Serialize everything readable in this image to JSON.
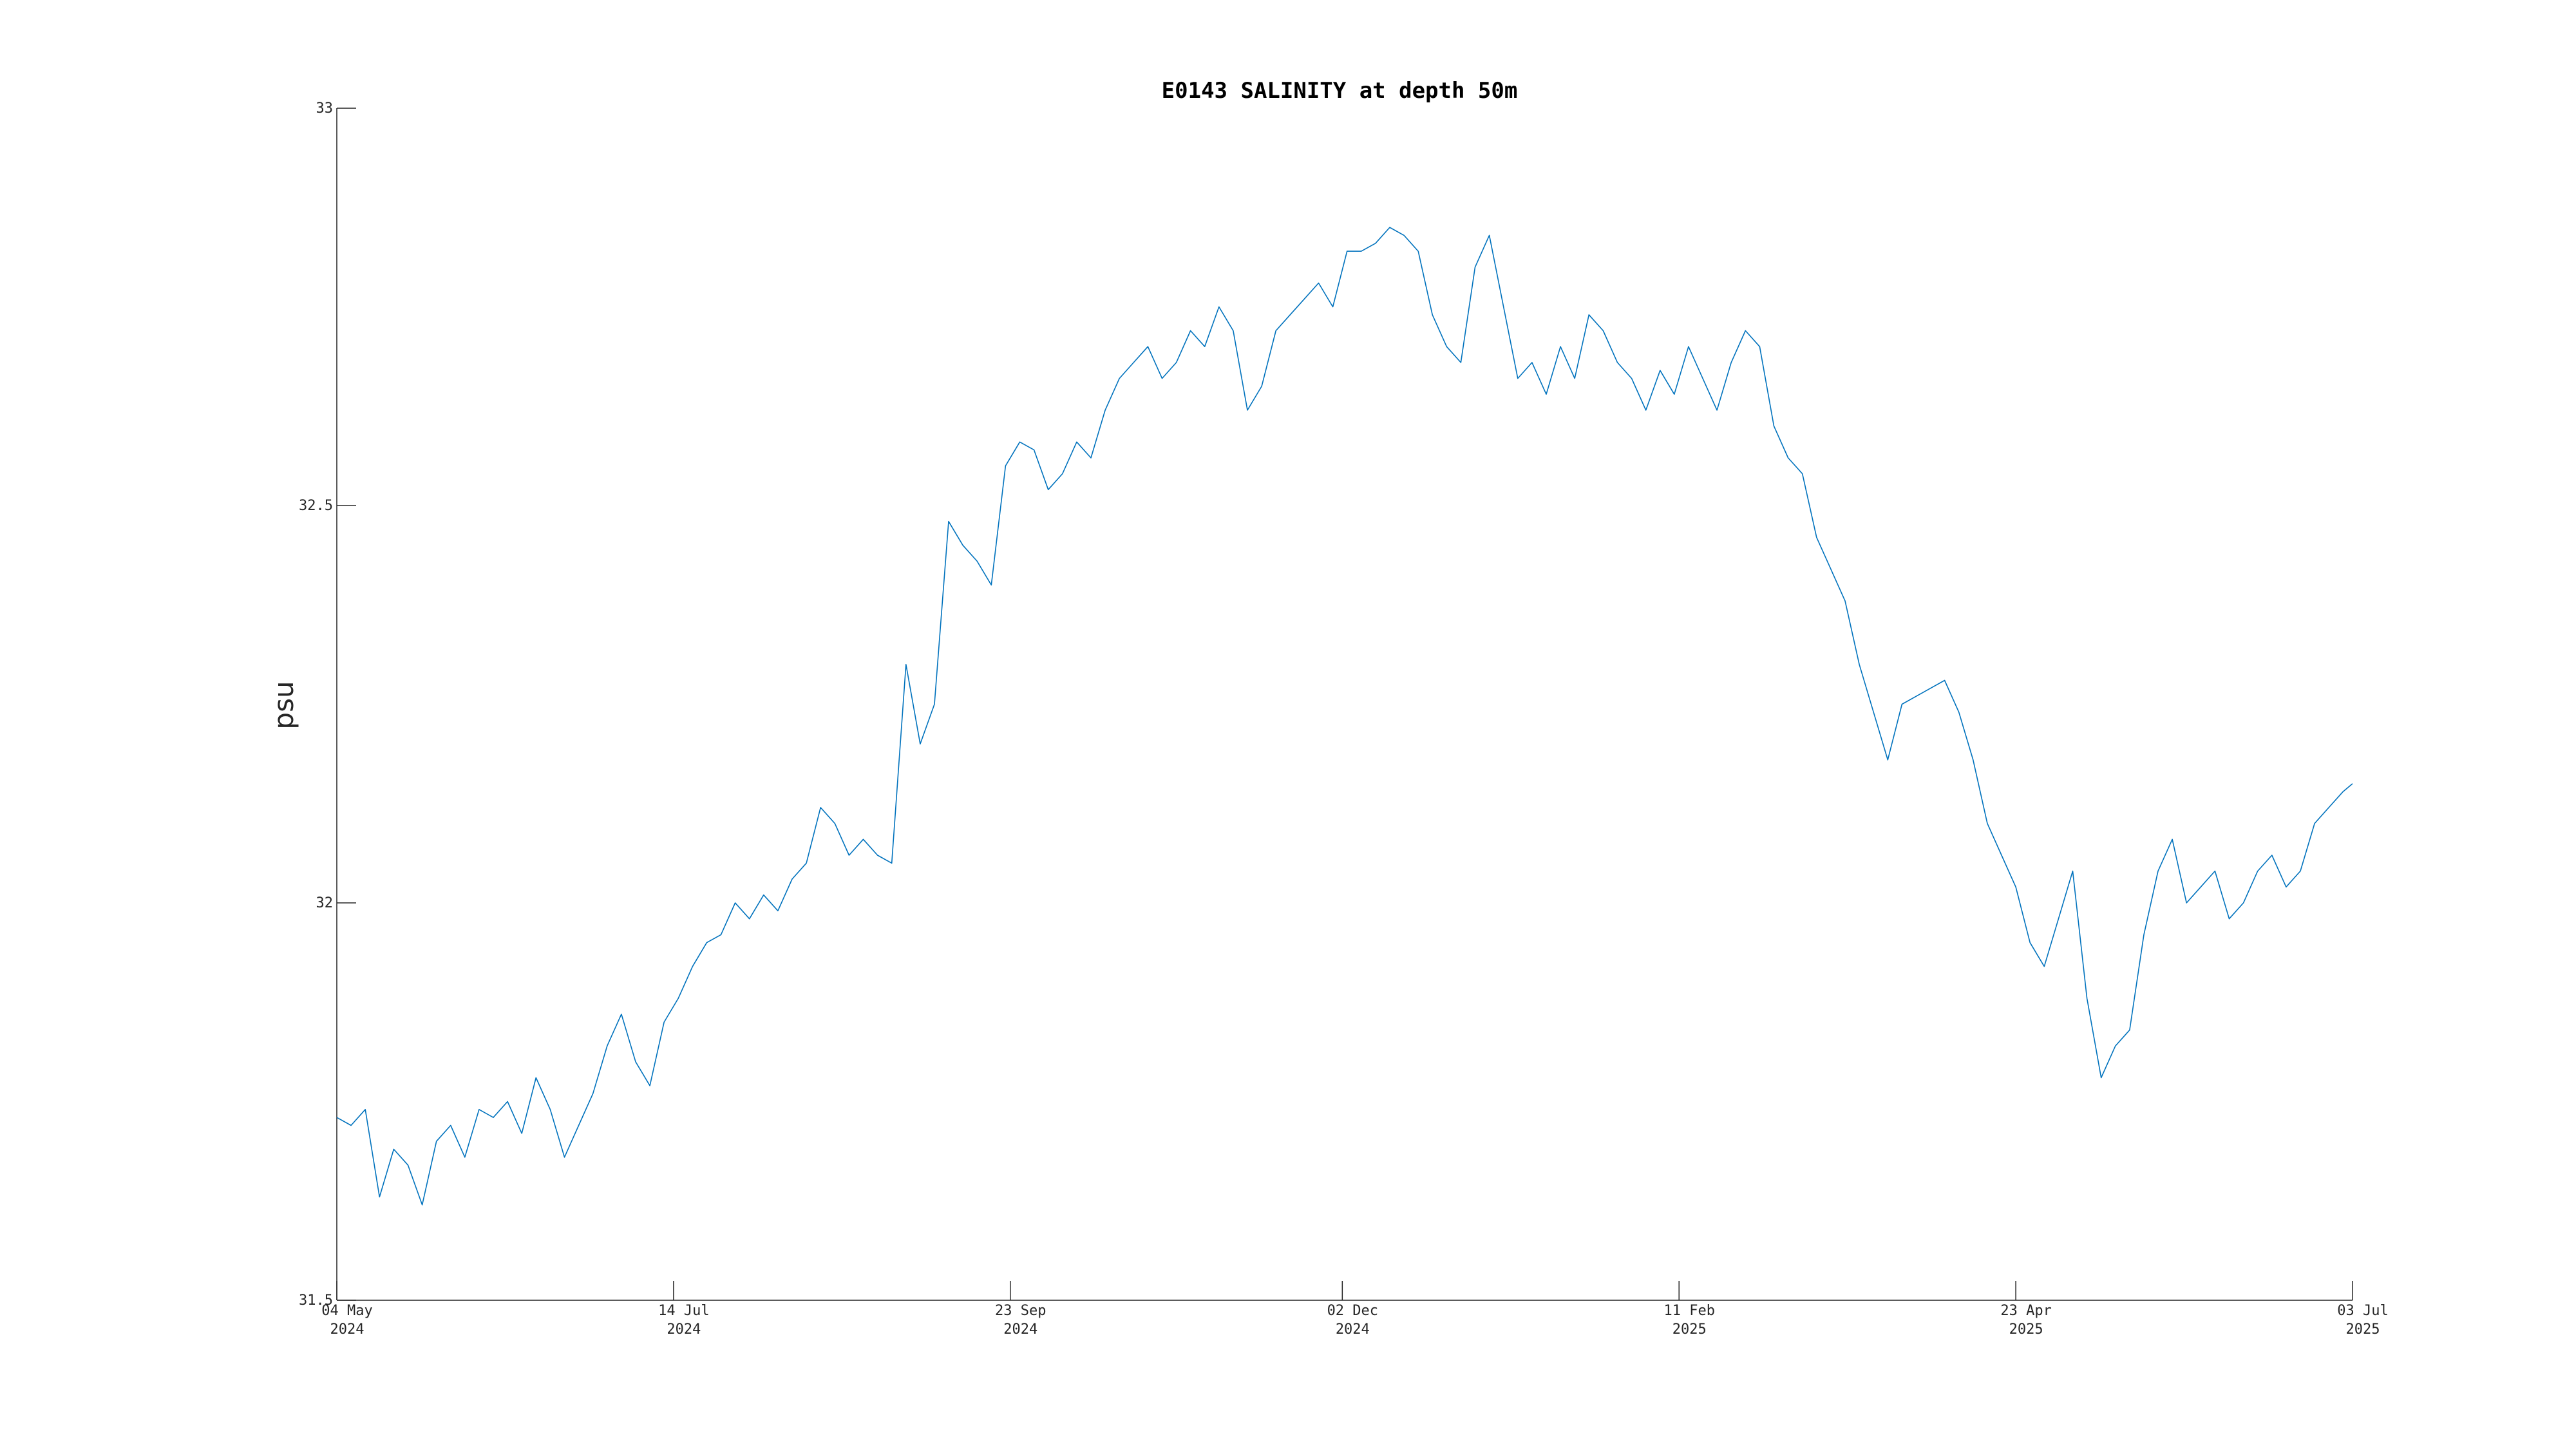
{
  "chart_data": {
    "type": "line",
    "title": "E0143 SALINITY at depth 50m",
    "xlabel": "",
    "ylabel": "psu",
    "xlim": [
      "2024-05-04",
      "2025-07-03"
    ],
    "ylim": [
      31.5,
      33
    ],
    "grid": false,
    "legend": "none",
    "x_ticks": [
      {
        "date": "2024-05-04",
        "line1": "04 May",
        "line2": "2024"
      },
      {
        "date": "2024-07-14",
        "line1": "14 Jul",
        "line2": "2024"
      },
      {
        "date": "2024-09-23",
        "line1": "23 Sep",
        "line2": "2024"
      },
      {
        "date": "2024-12-02",
        "line1": "02 Dec",
        "line2": "2024"
      },
      {
        "date": "2025-02-11",
        "line1": "11 Feb",
        "line2": "2025"
      },
      {
        "date": "2025-04-23",
        "line1": "23 Apr",
        "line2": "2025"
      },
      {
        "date": "2025-07-03",
        "line1": "03 Jul",
        "line2": "2025"
      }
    ],
    "y_ticks": [
      {
        "value": 31.5,
        "label": "31.5"
      },
      {
        "value": 32,
        "label": "32"
      },
      {
        "value": 32.5,
        "label": "32.5"
      },
      {
        "value": 33,
        "label": "33"
      }
    ],
    "series": [
      {
        "color": "#0072BD",
        "x": [
          "2024-05-04",
          "2024-05-07",
          "2024-05-10",
          "2024-05-13",
          "2024-05-16",
          "2024-05-19",
          "2024-05-22",
          "2024-05-25",
          "2024-05-28",
          "2024-05-31",
          "2024-06-03",
          "2024-06-06",
          "2024-06-09",
          "2024-06-12",
          "2024-06-15",
          "2024-06-18",
          "2024-06-21",
          "2024-06-24",
          "2024-06-27",
          "2024-06-30",
          "2024-07-03",
          "2024-07-06",
          "2024-07-09",
          "2024-07-12",
          "2024-07-15",
          "2024-07-18",
          "2024-07-21",
          "2024-07-24",
          "2024-07-27",
          "2024-07-30",
          "2024-08-02",
          "2024-08-05",
          "2024-08-08",
          "2024-08-11",
          "2024-08-14",
          "2024-08-17",
          "2024-08-20",
          "2024-08-23",
          "2024-08-26",
          "2024-08-29",
          "2024-09-01",
          "2024-09-04",
          "2024-09-07",
          "2024-09-10",
          "2024-09-13",
          "2024-09-16",
          "2024-09-19",
          "2024-09-22",
          "2024-09-25",
          "2024-09-28",
          "2024-10-01",
          "2024-10-04",
          "2024-10-07",
          "2024-10-10",
          "2024-10-13",
          "2024-10-16",
          "2024-10-19",
          "2024-10-22",
          "2024-10-25",
          "2024-10-28",
          "2024-10-31",
          "2024-11-03",
          "2024-11-06",
          "2024-11-09",
          "2024-11-12",
          "2024-11-15",
          "2024-11-18",
          "2024-11-21",
          "2024-11-24",
          "2024-11-27",
          "2024-11-30",
          "2024-12-03",
          "2024-12-06",
          "2024-12-09",
          "2024-12-12",
          "2024-12-15",
          "2024-12-18",
          "2024-12-21",
          "2024-12-24",
          "2024-12-27",
          "2024-12-30",
          "2025-01-02",
          "2025-01-05",
          "2025-01-08",
          "2025-01-11",
          "2025-01-14",
          "2025-01-17",
          "2025-01-20",
          "2025-01-23",
          "2025-01-26",
          "2025-01-29",
          "2025-02-01",
          "2025-02-04",
          "2025-02-07",
          "2025-02-10",
          "2025-02-13",
          "2025-02-16",
          "2025-02-19",
          "2025-02-22",
          "2025-02-25",
          "2025-02-28",
          "2025-03-03",
          "2025-03-06",
          "2025-03-09",
          "2025-03-12",
          "2025-03-15",
          "2025-03-18",
          "2025-03-21",
          "2025-03-24",
          "2025-03-27",
          "2025-03-30",
          "2025-04-02",
          "2025-04-05",
          "2025-04-08",
          "2025-04-11",
          "2025-04-14",
          "2025-04-17",
          "2025-04-20",
          "2025-04-23",
          "2025-04-26",
          "2025-04-29",
          "2025-05-02",
          "2025-05-05",
          "2025-05-08",
          "2025-05-11",
          "2025-05-14",
          "2025-05-17",
          "2025-05-20",
          "2025-05-23",
          "2025-05-26",
          "2025-05-29",
          "2025-06-01",
          "2025-06-04",
          "2025-06-07",
          "2025-06-10",
          "2025-06-13",
          "2025-06-16",
          "2025-06-19",
          "2025-06-22",
          "2025-06-25",
          "2025-06-28",
          "2025-07-01",
          "2025-07-03"
        ],
        "y": [
          31.73,
          31.72,
          31.74,
          31.63,
          31.69,
          31.67,
          31.62,
          31.7,
          31.72,
          31.68,
          31.74,
          31.73,
          31.75,
          31.71,
          31.78,
          31.74,
          31.68,
          31.72,
          31.76,
          31.82,
          31.86,
          31.8,
          31.77,
          31.85,
          31.88,
          31.92,
          31.95,
          31.96,
          32.0,
          31.98,
          32.01,
          31.99,
          32.03,
          32.05,
          32.12,
          32.1,
          32.06,
          32.08,
          32.06,
          32.05,
          32.3,
          32.2,
          32.25,
          32.48,
          32.45,
          32.43,
          32.4,
          32.55,
          32.58,
          32.57,
          32.52,
          32.54,
          32.58,
          32.56,
          32.62,
          32.66,
          32.68,
          32.7,
          32.66,
          32.68,
          32.72,
          32.7,
          32.75,
          32.72,
          32.62,
          32.65,
          32.72,
          32.74,
          32.76,
          32.78,
          32.75,
          32.82,
          32.82,
          32.83,
          32.85,
          32.84,
          32.82,
          32.74,
          32.7,
          32.68,
          32.8,
          32.84,
          32.75,
          32.66,
          32.68,
          32.64,
          32.7,
          32.66,
          32.74,
          32.72,
          32.68,
          32.66,
          32.62,
          32.67,
          32.64,
          32.7,
          32.66,
          32.62,
          32.68,
          32.72,
          32.7,
          32.6,
          32.56,
          32.54,
          32.46,
          32.42,
          32.38,
          32.3,
          32.24,
          32.18,
          32.25,
          32.26,
          32.27,
          32.28,
          32.24,
          32.18,
          32.1,
          32.06,
          32.02,
          31.95,
          31.92,
          31.98,
          32.04,
          31.88,
          31.78,
          31.82,
          31.84,
          31.96,
          32.04,
          32.08,
          32.0,
          32.02,
          32.04,
          31.98,
          32.0,
          32.04,
          32.06,
          32.02,
          32.04,
          32.1,
          32.12,
          32.14,
          32.15
        ]
      }
    ]
  }
}
